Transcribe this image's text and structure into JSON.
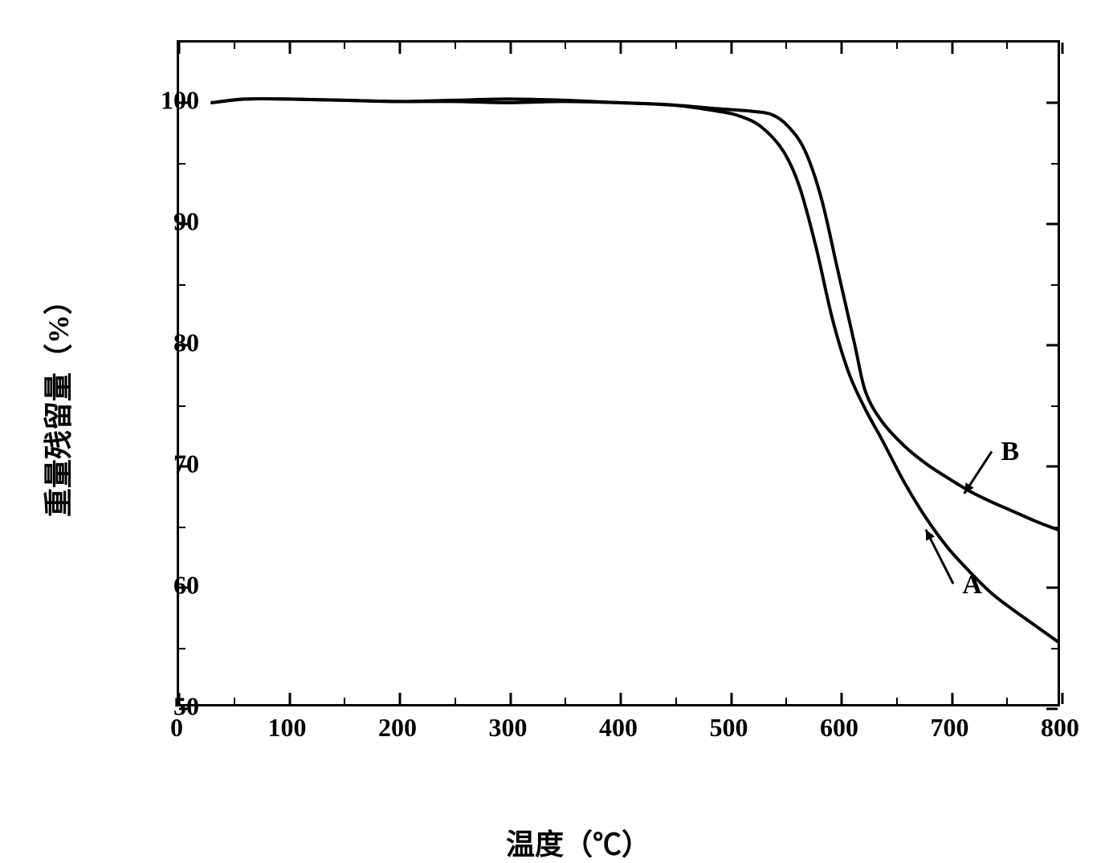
{
  "chart": {
    "type": "line",
    "background_color": "#ffffff",
    "border_color": "#000000",
    "border_width": 3,
    "line_color": "#000000",
    "line_width": 4,
    "x_axis": {
      "label": "温度（℃）",
      "min": 0,
      "max": 800,
      "major_ticks": [
        0,
        100,
        200,
        300,
        400,
        500,
        600,
        700,
        800
      ],
      "minor_ticks": [
        50,
        150,
        250,
        350,
        450,
        550,
        650,
        750
      ],
      "label_fontsize": 36,
      "tick_fontsize": 32
    },
    "y_axis": {
      "label": "重量残留量（%）",
      "min": 50,
      "max": 105,
      "major_ticks": [
        50,
        60,
        70,
        80,
        90,
        100
      ],
      "minor_ticks": [
        55,
        65,
        75,
        85,
        95
      ],
      "label_fontsize": 36,
      "tick_fontsize": 32
    },
    "series": [
      {
        "name": "A",
        "annotation": {
          "x": 705,
          "y": 60,
          "arrow_to_x": 680,
          "arrow_to_y": 64.5
        },
        "data": [
          {
            "x": 30,
            "y": 100.0
          },
          {
            "x": 60,
            "y": 100.3
          },
          {
            "x": 100,
            "y": 100.3
          },
          {
            "x": 150,
            "y": 100.2
          },
          {
            "x": 200,
            "y": 100.1
          },
          {
            "x": 250,
            "y": 100.2
          },
          {
            "x": 300,
            "y": 100.3
          },
          {
            "x": 350,
            "y": 100.2
          },
          {
            "x": 400,
            "y": 100.0
          },
          {
            "x": 450,
            "y": 99.8
          },
          {
            "x": 490,
            "y": 99.3
          },
          {
            "x": 510,
            "y": 98.9
          },
          {
            "x": 530,
            "y": 98.0
          },
          {
            "x": 550,
            "y": 96.0
          },
          {
            "x": 565,
            "y": 93.0
          },
          {
            "x": 580,
            "y": 88.0
          },
          {
            "x": 595,
            "y": 82.0
          },
          {
            "x": 610,
            "y": 77.5
          },
          {
            "x": 625,
            "y": 74.5
          },
          {
            "x": 640,
            "y": 72.0
          },
          {
            "x": 660,
            "y": 68.5
          },
          {
            "x": 680,
            "y": 65.5
          },
          {
            "x": 700,
            "y": 63.0
          },
          {
            "x": 720,
            "y": 61.0
          },
          {
            "x": 740,
            "y": 59.2
          },
          {
            "x": 760,
            "y": 57.8
          },
          {
            "x": 780,
            "y": 56.5
          },
          {
            "x": 800,
            "y": 55.2
          }
        ]
      },
      {
        "name": "B",
        "annotation": {
          "x": 740,
          "y": 71,
          "arrow_to_x": 715,
          "arrow_to_y": 67.5
        },
        "data": [
          {
            "x": 30,
            "y": 100.0
          },
          {
            "x": 60,
            "y": 100.3
          },
          {
            "x": 100,
            "y": 100.3
          },
          {
            "x": 150,
            "y": 100.2
          },
          {
            "x": 200,
            "y": 100.1
          },
          {
            "x": 250,
            "y": 100.1
          },
          {
            "x": 300,
            "y": 100.0
          },
          {
            "x": 350,
            "y": 100.1
          },
          {
            "x": 400,
            "y": 100.0
          },
          {
            "x": 450,
            "y": 99.8
          },
          {
            "x": 490,
            "y": 99.5
          },
          {
            "x": 520,
            "y": 99.3
          },
          {
            "x": 540,
            "y": 99.0
          },
          {
            "x": 555,
            "y": 98.0
          },
          {
            "x": 570,
            "y": 96.0
          },
          {
            "x": 585,
            "y": 92.0
          },
          {
            "x": 600,
            "y": 86.0
          },
          {
            "x": 615,
            "y": 80.0
          },
          {
            "x": 625,
            "y": 76.0
          },
          {
            "x": 640,
            "y": 73.5
          },
          {
            "x": 660,
            "y": 71.5
          },
          {
            "x": 680,
            "y": 70.0
          },
          {
            "x": 700,
            "y": 68.8
          },
          {
            "x": 720,
            "y": 67.7
          },
          {
            "x": 740,
            "y": 66.8
          },
          {
            "x": 760,
            "y": 66.0
          },
          {
            "x": 780,
            "y": 65.2
          },
          {
            "x": 800,
            "y": 64.5
          }
        ]
      }
    ]
  }
}
